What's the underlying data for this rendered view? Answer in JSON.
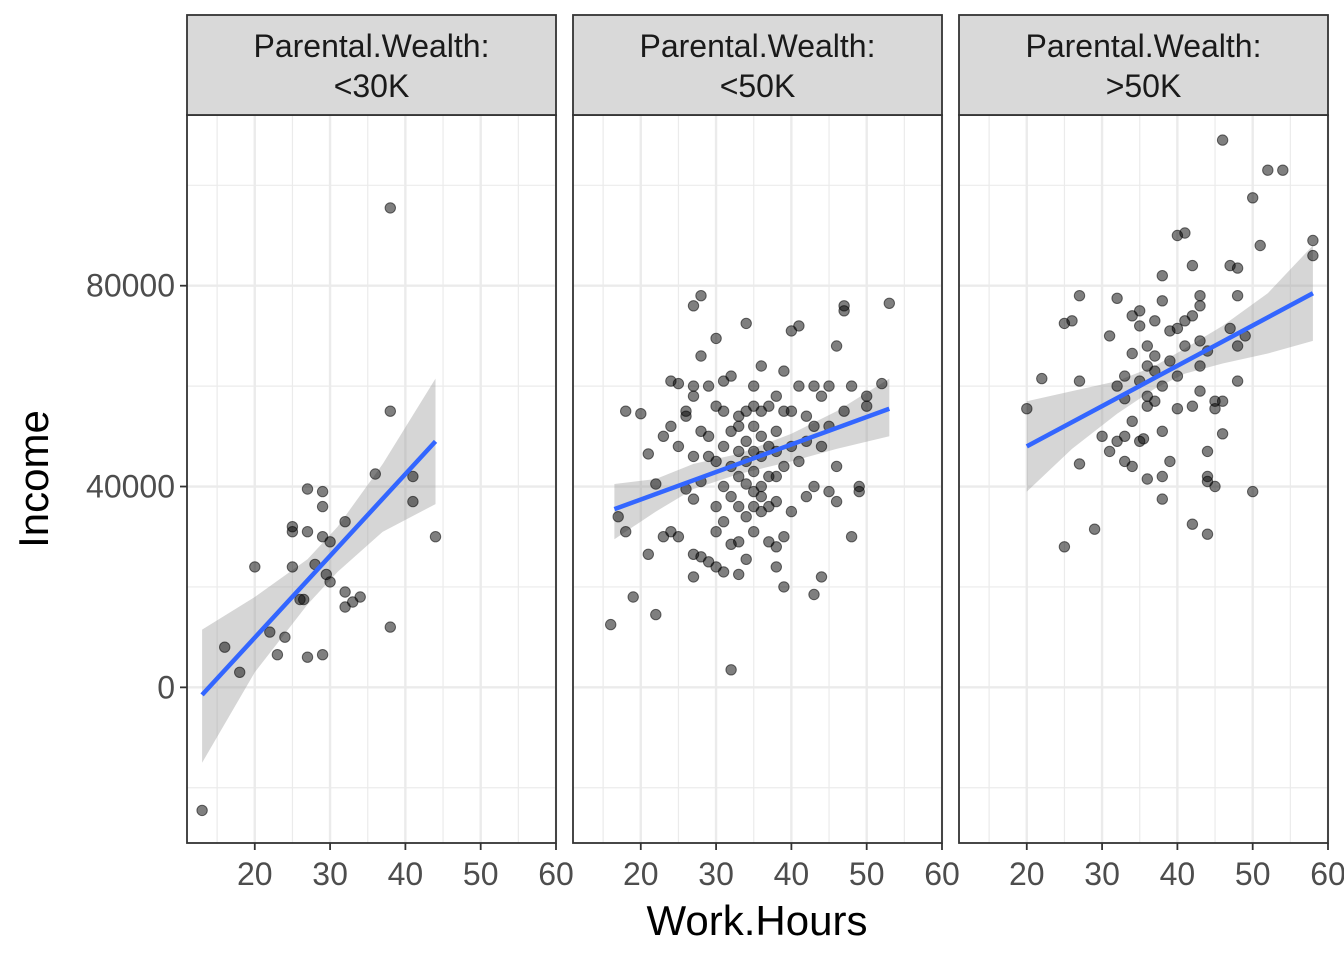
{
  "chart_data": {
    "type": "scatter",
    "xlabel": "Work.Hours",
    "ylabel": "Income",
    "xlim": [
      11,
      60
    ],
    "ylim": [
      -31000,
      114000
    ],
    "x_ticks": [
      20,
      30,
      40,
      50,
      60
    ],
    "y_ticks": [
      0,
      40000,
      80000
    ],
    "grid": true,
    "colors": {
      "point": "#000000",
      "trend_line": "#3366FF",
      "confidence_band": "#999999",
      "strip_fill": "#d9d9d9",
      "panel_border": "#333333",
      "grid_major": "#ebebeb"
    },
    "panels": [
      {
        "label": "Parental.Wealth:\n<30K",
        "label_lines": [
          "Parental.Wealth:",
          "<30K"
        ],
        "points": [
          [
            13,
            -24500
          ],
          [
            16,
            8000
          ],
          [
            18,
            3000
          ],
          [
            20,
            24000
          ],
          [
            22,
            11000
          ],
          [
            23,
            6500
          ],
          [
            24,
            10000
          ],
          [
            25,
            24000
          ],
          [
            25,
            31000
          ],
          [
            25,
            32000
          ],
          [
            26,
            17500
          ],
          [
            26.5,
            17500
          ],
          [
            27,
            39500
          ],
          [
            27,
            31000
          ],
          [
            27,
            6000
          ],
          [
            28,
            24500
          ],
          [
            29,
            39000
          ],
          [
            29,
            36000
          ],
          [
            29,
            30000
          ],
          [
            29,
            6500
          ],
          [
            29.5,
            22500
          ],
          [
            30,
            21000
          ],
          [
            30,
            29000
          ],
          [
            32,
            33000
          ],
          [
            32,
            19000
          ],
          [
            32,
            16000
          ],
          [
            33,
            17000
          ],
          [
            34,
            18000
          ],
          [
            36,
            42500
          ],
          [
            38,
            95500
          ],
          [
            38,
            55000
          ],
          [
            38,
            12000
          ],
          [
            41,
            37000
          ],
          [
            41,
            42000
          ],
          [
            44,
            30000
          ]
        ],
        "trend": {
          "x": [
            13,
            44
          ],
          "y": [
            -1500,
            49000
          ]
        },
        "band": {
          "x": [
            13,
            20,
            27,
            31,
            37,
            44
          ],
          "lower": [
            -15000,
            3000,
            16500,
            23000,
            31000,
            36500
          ],
          "upper": [
            11500,
            18000,
            25500,
            32000,
            44500,
            61500
          ]
        }
      },
      {
        "label": "Parental.Wealth:\n<50K",
        "label_lines": [
          "Parental.Wealth:",
          "<50K"
        ],
        "points": [
          [
            16,
            12500
          ],
          [
            17,
            34000
          ],
          [
            18,
            55000
          ],
          [
            18,
            31000
          ],
          [
            19,
            18000
          ],
          [
            20,
            54500
          ],
          [
            21,
            46500
          ],
          [
            21,
            26500
          ],
          [
            22,
            40500
          ],
          [
            22,
            14500
          ],
          [
            23,
            50000
          ],
          [
            23,
            30000
          ],
          [
            24,
            52000
          ],
          [
            24,
            31000
          ],
          [
            24,
            61000
          ],
          [
            25,
            60500
          ],
          [
            25,
            48000
          ],
          [
            25,
            30000
          ],
          [
            26,
            55000
          ],
          [
            26,
            54000
          ],
          [
            26,
            39500
          ],
          [
            27,
            60000
          ],
          [
            27,
            58000
          ],
          [
            27,
            46000
          ],
          [
            27,
            37500
          ],
          [
            27,
            26500
          ],
          [
            27,
            22000
          ],
          [
            27,
            76000
          ],
          [
            28,
            78000
          ],
          [
            28,
            66000
          ],
          [
            28,
            51000
          ],
          [
            28,
            41000
          ],
          [
            28,
            26000
          ],
          [
            29,
            60000
          ],
          [
            29,
            50000
          ],
          [
            29,
            25000
          ],
          [
            29,
            46000
          ],
          [
            30,
            69500
          ],
          [
            30,
            56000
          ],
          [
            30,
            45000
          ],
          [
            30,
            36000
          ],
          [
            30,
            31000
          ],
          [
            30,
            24000
          ],
          [
            31,
            61000
          ],
          [
            31,
            55000
          ],
          [
            31,
            48000
          ],
          [
            31,
            40000
          ],
          [
            31,
            33000
          ],
          [
            31,
            23000
          ],
          [
            32,
            62000
          ],
          [
            32,
            51000
          ],
          [
            32,
            44000
          ],
          [
            32,
            38000
          ],
          [
            32,
            28500
          ],
          [
            32,
            3500
          ],
          [
            33,
            54000
          ],
          [
            33,
            52000
          ],
          [
            33,
            47000
          ],
          [
            33,
            42000
          ],
          [
            33,
            36000
          ],
          [
            33,
            29000
          ],
          [
            33,
            22500
          ],
          [
            34,
            72500
          ],
          [
            34,
            55000
          ],
          [
            34,
            49000
          ],
          [
            34,
            45000
          ],
          [
            34,
            40500
          ],
          [
            34,
            34000
          ],
          [
            34,
            25500
          ],
          [
            35,
            60000
          ],
          [
            35,
            56000
          ],
          [
            35,
            52000
          ],
          [
            35,
            47000
          ],
          [
            35,
            43000
          ],
          [
            35,
            39000
          ],
          [
            35,
            36000
          ],
          [
            35,
            31000
          ],
          [
            36,
            64000
          ],
          [
            36,
            55000
          ],
          [
            36,
            50000
          ],
          [
            36,
            46000
          ],
          [
            36,
            40000
          ],
          [
            36,
            38000
          ],
          [
            36,
            35000
          ],
          [
            37,
            56000
          ],
          [
            37,
            48000
          ],
          [
            37,
            42000
          ],
          [
            37,
            36000
          ],
          [
            37,
            29000
          ],
          [
            38,
            58000
          ],
          [
            38,
            51000
          ],
          [
            38,
            47000
          ],
          [
            38,
            42000
          ],
          [
            38,
            37000
          ],
          [
            38,
            24000
          ],
          [
            38,
            28000
          ],
          [
            39,
            63000
          ],
          [
            39,
            55000
          ],
          [
            39,
            44000
          ],
          [
            39,
            30000
          ],
          [
            39,
            20000
          ],
          [
            40,
            71000
          ],
          [
            40,
            55000
          ],
          [
            40,
            48000
          ],
          [
            40,
            35000
          ],
          [
            41,
            72000
          ],
          [
            41,
            60000
          ],
          [
            41,
            45000
          ],
          [
            42,
            54000
          ],
          [
            42,
            49000
          ],
          [
            42,
            38000
          ],
          [
            43,
            60000
          ],
          [
            43,
            52000
          ],
          [
            43,
            40000
          ],
          [
            43,
            18500
          ],
          [
            44,
            22000
          ],
          [
            44,
            58000
          ],
          [
            44,
            48000
          ],
          [
            45,
            60000
          ],
          [
            45,
            52000
          ],
          [
            45,
            39000
          ],
          [
            46,
            68000
          ],
          [
            46,
            44000
          ],
          [
            46,
            37000
          ],
          [
            47,
            76000
          ],
          [
            47,
            75000
          ],
          [
            47,
            55000
          ],
          [
            48,
            60000
          ],
          [
            48,
            30000
          ],
          [
            49,
            40000
          ],
          [
            49,
            39000
          ],
          [
            50,
            58000
          ],
          [
            50,
            56000
          ],
          [
            52,
            60500
          ],
          [
            53,
            76500
          ]
        ],
        "trend": {
          "x": [
            16.5,
            53
          ],
          "y": [
            35500,
            55500
          ]
        },
        "band": {
          "x": [
            16.5,
            22,
            27,
            33,
            40,
            46,
            53
          ],
          "lower": [
            29500,
            35000,
            39500,
            42500,
            45000,
            47500,
            50000
          ],
          "upper": [
            40500,
            41500,
            44500,
            46500,
            50500,
            55000,
            61500
          ]
        }
      },
      {
        "label": "Parental.Wealth:\n>50K",
        "label_lines": [
          "Parental.Wealth:",
          ">50K"
        ],
        "points": [
          [
            20,
            55500
          ],
          [
            22,
            61500
          ],
          [
            25,
            72500
          ],
          [
            25,
            28000
          ],
          [
            26,
            73000
          ],
          [
            27,
            61000
          ],
          [
            27,
            78000
          ],
          [
            27,
            44500
          ],
          [
            29,
            31500
          ],
          [
            30,
            50000
          ],
          [
            31,
            47000
          ],
          [
            31,
            70000
          ],
          [
            32,
            77500
          ],
          [
            32,
            60000
          ],
          [
            32,
            49000
          ],
          [
            33,
            62000
          ],
          [
            33,
            57500
          ],
          [
            33,
            50000
          ],
          [
            33,
            45000
          ],
          [
            34,
            74000
          ],
          [
            34,
            66500
          ],
          [
            34,
            53000
          ],
          [
            34,
            44000
          ],
          [
            35,
            75000
          ],
          [
            35,
            72000
          ],
          [
            35,
            61000
          ],
          [
            35,
            49000
          ],
          [
            35.5,
            49500
          ],
          [
            36,
            68000
          ],
          [
            36,
            64000
          ],
          [
            36,
            58000
          ],
          [
            36,
            56000
          ],
          [
            36,
            41500
          ],
          [
            37,
            73000
          ],
          [
            37,
            66000
          ],
          [
            37,
            63000
          ],
          [
            37,
            57000
          ],
          [
            38,
            82000
          ],
          [
            38,
            77000
          ],
          [
            38,
            60000
          ],
          [
            38,
            51000
          ],
          [
            38,
            42000
          ],
          [
            38,
            37500
          ],
          [
            39,
            71000
          ],
          [
            39,
            65000
          ],
          [
            39,
            45000
          ],
          [
            40,
            90000
          ],
          [
            40,
            71500
          ],
          [
            40,
            62000
          ],
          [
            40,
            55500
          ],
          [
            41,
            90500
          ],
          [
            41,
            73000
          ],
          [
            41,
            68000
          ],
          [
            42,
            84000
          ],
          [
            42,
            74000
          ],
          [
            42,
            56000
          ],
          [
            42,
            32500
          ],
          [
            43,
            78000
          ],
          [
            43,
            76000
          ],
          [
            43,
            69000
          ],
          [
            43,
            64000
          ],
          [
            43,
            59000
          ],
          [
            44,
            67000
          ],
          [
            44,
            47000
          ],
          [
            44,
            42000
          ],
          [
            44,
            41000
          ],
          [
            44,
            30500
          ],
          [
            45,
            57000
          ],
          [
            45,
            55500
          ],
          [
            45,
            40000
          ],
          [
            46,
            109000
          ],
          [
            46,
            57000
          ],
          [
            46,
            50500
          ],
          [
            47,
            84000
          ],
          [
            47,
            71500
          ],
          [
            48,
            83500
          ],
          [
            48,
            78000
          ],
          [
            48,
            68000
          ],
          [
            48,
            61000
          ],
          [
            49,
            70000
          ],
          [
            50,
            97500
          ],
          [
            50,
            39000
          ],
          [
            51,
            88000
          ],
          [
            52,
            103000
          ],
          [
            54,
            103000
          ],
          [
            58,
            89000
          ],
          [
            58,
            86000
          ]
        ],
        "trend": {
          "x": [
            20,
            58
          ],
          "y": [
            48000,
            78500
          ]
        },
        "band": {
          "x": [
            20,
            26,
            32,
            37,
            41,
            46,
            52,
            58
          ],
          "lower": [
            39000,
            47500,
            54500,
            59500,
            62500,
            64500,
            66500,
            69000
          ],
          "upper": [
            57000,
            59000,
            61000,
            64000,
            67500,
            72000,
            78500,
            88000
          ]
        }
      }
    ]
  }
}
